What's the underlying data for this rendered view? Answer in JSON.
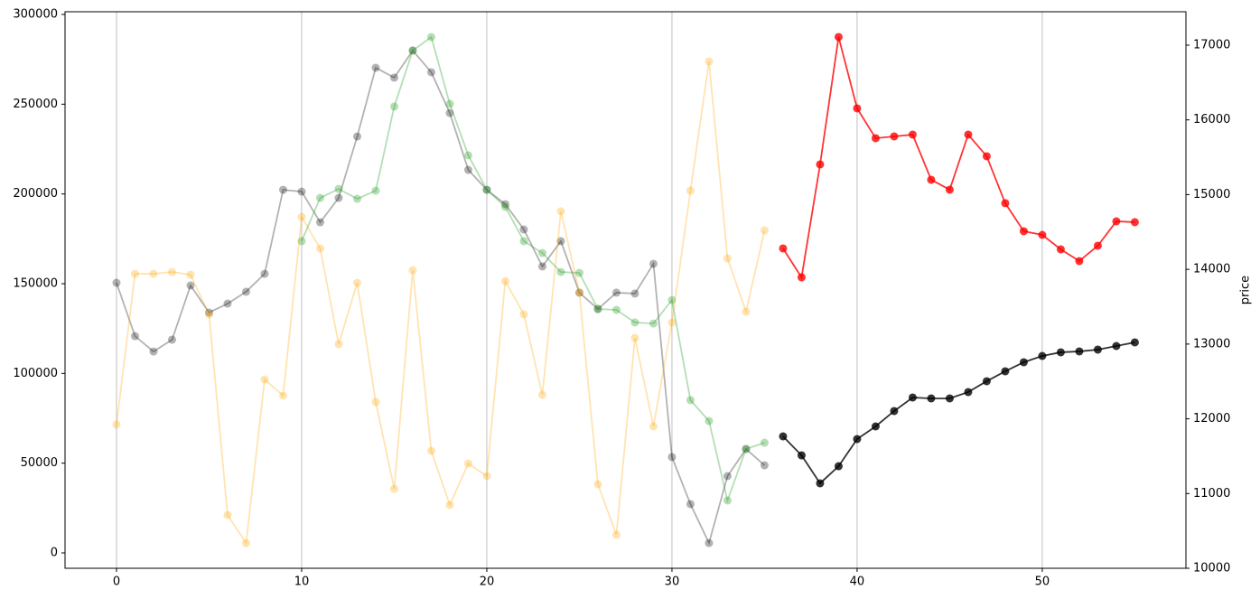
{
  "chart_data": {
    "type": "line",
    "y2label": "price",
    "xlim": [
      -2.78,
      57.76
    ],
    "xticks": [
      0,
      10,
      20,
      30,
      40,
      50
    ],
    "ylim": [
      -8560,
      301510
    ],
    "yticks": [
      0,
      50000,
      100000,
      150000,
      200000,
      250000,
      300000
    ],
    "y2lim": [
      10000,
      17447
    ],
    "y2ticks": [
      10000,
      11000,
      12000,
      13000,
      14000,
      15000,
      16000,
      17000
    ],
    "grid": "x",
    "series": [
      {
        "color": "#000000",
        "opacity": 0.3,
        "axis": "y",
        "x": [
          0,
          1,
          2,
          3,
          4,
          5,
          6,
          7,
          8,
          9,
          10,
          11,
          12,
          13,
          14,
          15,
          16,
          17,
          18,
          19,
          20,
          21,
          22,
          23,
          24,
          25,
          26,
          27,
          28,
          29,
          30,
          31,
          32,
          33,
          34,
          35
        ],
        "values": [
          150500,
          120800,
          112200,
          118800,
          149000,
          133900,
          138900,
          145500,
          155500,
          202300,
          201300,
          184200,
          197800,
          232000,
          270300,
          264800,
          279900,
          267800,
          245100,
          213400,
          202300,
          194300,
          180200,
          159600,
          173700,
          145000,
          135900,
          145000,
          144500,
          161100,
          53400,
          27200,
          5500,
          42800,
          57900,
          48800
        ]
      },
      {
        "color": "#2ca02c",
        "opacity": 0.35,
        "axis": "y",
        "x": [
          10,
          11,
          12,
          13,
          14,
          15,
          16,
          17,
          18,
          19,
          20,
          21,
          22,
          23,
          24,
          25,
          26,
          27,
          28,
          29,
          30,
          31,
          32,
          33,
          34,
          35
        ],
        "values": [
          173700,
          197800,
          202800,
          197300,
          201800,
          248700,
          279900,
          287400,
          250200,
          221500,
          202300,
          192800,
          173700,
          167100,
          156500,
          156000,
          135900,
          135400,
          128400,
          127800,
          140900,
          85100,
          73500,
          29200,
          57900,
          61400
        ]
      },
      {
        "color": "#ffa500",
        "opacity": 0.3,
        "axis": "y",
        "x": [
          0,
          1,
          2,
          3,
          4,
          5,
          6,
          7,
          8,
          9,
          10,
          11,
          12,
          13,
          14,
          15,
          16,
          17,
          18,
          19,
          20,
          21,
          22,
          23,
          24,
          25,
          26,
          27,
          28,
          29,
          30,
          31,
          32,
          33,
          34,
          35
        ],
        "values": [
          71500,
          155500,
          155500,
          156500,
          155000,
          132900,
          21100,
          5500,
          96600,
          87600,
          187200,
          169600,
          116300,
          150500,
          84100,
          35700,
          157500,
          56900,
          26700,
          49800,
          42800,
          151500,
          132900,
          88100,
          190300,
          145000,
          38300,
          10100,
          119800,
          70500,
          128400,
          201800,
          273800,
          164100,
          134400,
          179700
        ]
      },
      {
        "color": "#ff0000",
        "opacity": 0.8,
        "axis": "y2",
        "x": [
          36,
          37,
          38,
          39,
          40,
          41,
          42,
          43,
          44,
          45,
          46,
          47,
          48,
          49,
          50,
          51,
          52,
          53,
          54,
          55
        ],
        "values": [
          14280,
          13893,
          15404,
          17109,
          16154,
          15755,
          15779,
          15803,
          15199,
          15066,
          15803,
          15513,
          14885,
          14510,
          14461,
          14268,
          14111,
          14316,
          14643,
          14631
        ]
      },
      {
        "color": "#000000",
        "opacity": 0.8,
        "axis": "y2",
        "x": [
          36,
          37,
          38,
          39,
          40,
          41,
          42,
          43,
          44,
          45,
          46,
          47,
          48,
          49,
          50,
          51,
          52,
          53,
          54,
          55
        ],
        "values": [
          11765,
          11511,
          11137,
          11366,
          11729,
          11898,
          12104,
          12285,
          12273,
          12273,
          12358,
          12503,
          12636,
          12757,
          12841,
          12890,
          12902,
          12926,
          12974,
          13023
        ]
      }
    ]
  }
}
